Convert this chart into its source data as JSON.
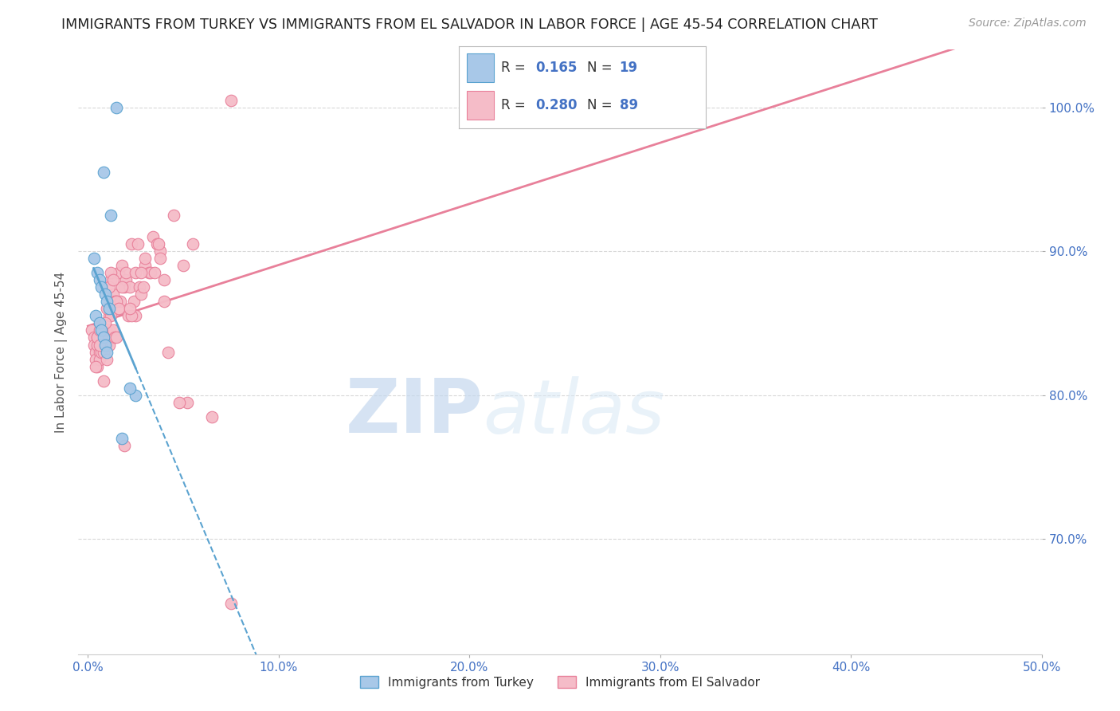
{
  "title": "IMMIGRANTS FROM TURKEY VS IMMIGRANTS FROM EL SALVADOR IN LABOR FORCE | AGE 45-54 CORRELATION CHART",
  "source": "Source: ZipAtlas.com",
  "ylabel": "In Labor Force | Age 45-54",
  "yticks": [
    70.0,
    80.0,
    90.0,
    100.0
  ],
  "xticks": [
    0.0,
    10.0,
    20.0,
    30.0,
    40.0,
    50.0
  ],
  "xlim": [
    -0.5,
    50.0
  ],
  "ylim": [
    62.0,
    104.0
  ],
  "turkey_color": "#a8c8e8",
  "turkey_edge": "#5ba3d0",
  "salvador_color": "#f5bcc8",
  "salvador_edge": "#e8809a",
  "trend_turkey_color": "#5ba3d0",
  "trend_salvador_color": "#e8809a",
  "R_turkey": 0.165,
  "N_turkey": 19,
  "R_salvador": 0.28,
  "N_salvador": 89,
  "background_color": "#ffffff",
  "grid_color": "#d8d8d8",
  "title_color": "#222222",
  "tick_label_color": "#4472c4",
  "turkey_x": [
    1.5,
    0.8,
    1.2,
    0.3,
    0.5,
    0.6,
    0.7,
    0.9,
    1.0,
    1.1,
    0.4,
    0.6,
    0.7,
    0.8,
    0.9,
    1.0,
    2.5,
    1.8,
    2.2
  ],
  "turkey_y": [
    100.0,
    95.5,
    92.5,
    89.5,
    88.5,
    88.0,
    87.5,
    87.0,
    86.5,
    86.0,
    85.5,
    85.0,
    84.5,
    84.0,
    83.5,
    83.0,
    80.0,
    77.0,
    80.5
  ],
  "salvador_x": [
    0.2,
    0.3,
    0.3,
    0.4,
    0.4,
    0.5,
    0.5,
    0.5,
    0.6,
    0.6,
    0.6,
    0.7,
    0.7,
    0.7,
    0.8,
    0.8,
    0.8,
    0.9,
    0.9,
    1.0,
    1.0,
    1.0,
    1.1,
    1.1,
    1.1,
    1.2,
    1.2,
    1.3,
    1.3,
    1.4,
    1.4,
    1.5,
    1.5,
    1.6,
    1.7,
    1.8,
    1.9,
    2.0,
    2.1,
    2.2,
    2.3,
    2.4,
    2.5,
    2.6,
    2.7,
    2.8,
    3.0,
    3.2,
    3.3,
    3.4,
    3.6,
    3.8,
    4.0,
    4.2,
    4.5,
    5.0,
    5.5,
    6.5,
    7.5,
    0.4,
    0.5,
    0.6,
    0.7,
    0.9,
    1.0,
    1.2,
    1.5,
    1.8,
    2.0,
    2.3,
    2.5,
    3.0,
    3.5,
    4.0,
    1.1,
    1.3,
    2.8,
    3.8,
    5.2,
    0.8,
    1.6,
    2.2,
    2.9,
    3.7,
    4.8,
    0.6,
    1.9,
    7.5
  ],
  "salvador_y": [
    84.5,
    84.0,
    83.5,
    83.0,
    82.5,
    83.5,
    84.0,
    82.0,
    84.0,
    83.0,
    82.5,
    83.5,
    84.0,
    83.0,
    84.5,
    83.5,
    83.0,
    84.5,
    83.5,
    84.5,
    83.5,
    82.5,
    85.5,
    84.5,
    83.5,
    88.0,
    85.5,
    87.0,
    84.5,
    86.5,
    84.0,
    86.5,
    84.0,
    88.5,
    86.5,
    89.0,
    87.5,
    88.0,
    85.5,
    87.5,
    90.5,
    86.5,
    85.5,
    90.5,
    87.5,
    87.0,
    89.0,
    88.5,
    88.5,
    91.0,
    90.5,
    90.0,
    86.5,
    83.0,
    92.5,
    89.0,
    90.5,
    78.5,
    65.5,
    82.0,
    84.0,
    84.5,
    83.5,
    85.0,
    86.0,
    88.5,
    86.5,
    87.5,
    88.5,
    85.5,
    88.5,
    89.5,
    88.5,
    88.0,
    87.5,
    88.0,
    88.5,
    89.5,
    79.5,
    81.0,
    86.0,
    86.0,
    87.5,
    90.5,
    79.5,
    83.5,
    76.5,
    100.5
  ],
  "watermark_zip": "ZIP",
  "watermark_atlas": "atlas"
}
